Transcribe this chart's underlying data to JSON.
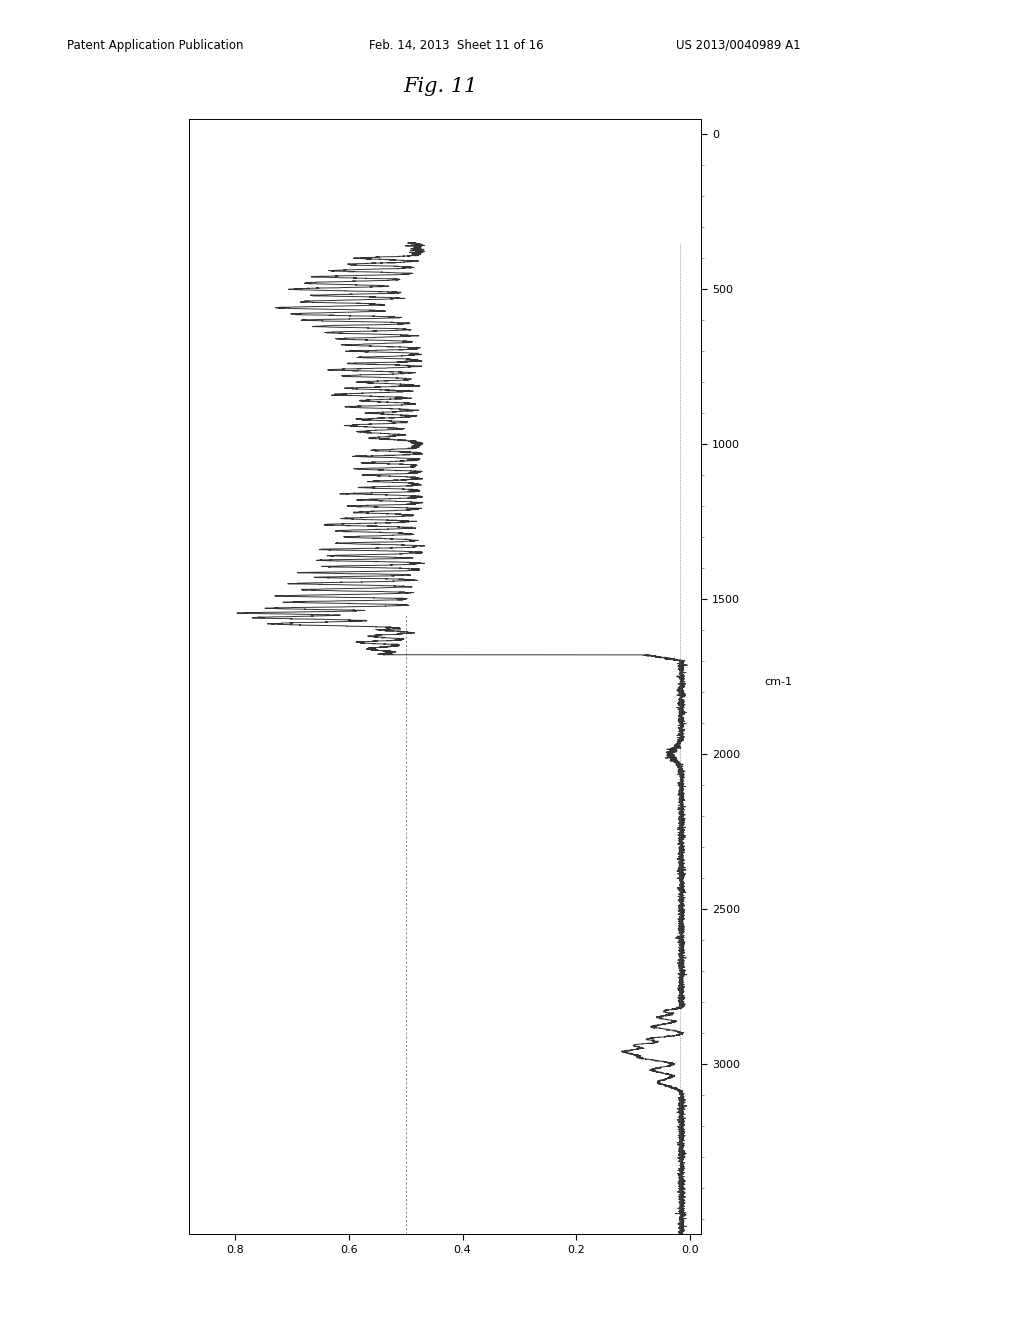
{
  "title": "Fig. 11",
  "header_left": "Patent Application Publication",
  "header_mid": "Feb. 14, 2013  Sheet 11 of 16",
  "header_right": "US 2013/0040989 A1",
  "x_label": "cm-1",
  "background_color": "#ffffff",
  "line_color": "#333333",
  "line_width": 0.7,
  "ytick_vals": [
    0,
    500,
    1000,
    1500,
    2000,
    2500,
    3000
  ],
  "xtick_vals": [
    0.0,
    0.2,
    0.4,
    0.6,
    0.8
  ],
  "wn_min": -50,
  "wn_max": 3550,
  "abs_min": -0.02,
  "abs_max": 0.88
}
